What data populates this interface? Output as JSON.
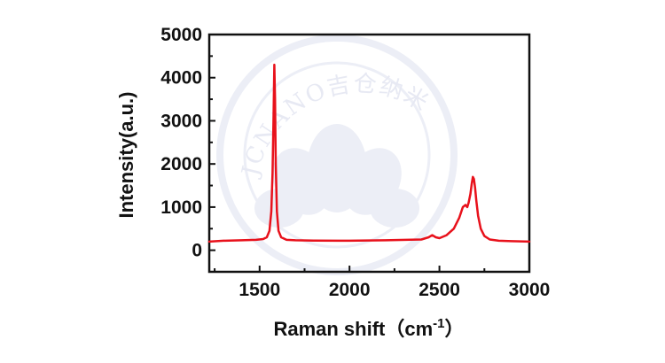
{
  "watermark": {
    "text": "JCNANO吉仓纳米",
    "color": "#e6e8f2"
  },
  "chart_data": {
    "type": "line",
    "title": "",
    "xlabel": "Raman shift（cm",
    "xlabel_sup": "-1",
    "xlabel_close": "）",
    "ylabel": "Intensity(a.u.)",
    "xlim": [
      1220,
      3000
    ],
    "ylim": [
      -500,
      5000
    ],
    "xticks": [
      1500,
      2000,
      2500,
      3000
    ],
    "xtick_labels": [
      "1500",
      "2000",
      "2500",
      "3000"
    ],
    "yticks": [
      0,
      1000,
      2000,
      3000,
      4000,
      5000
    ],
    "ytick_labels": [
      "0",
      "1000",
      "2000",
      "3000",
      "4000",
      "5000"
    ],
    "grid": false,
    "series": [
      {
        "color": "#e8111b",
        "x": [
          1220,
          1300,
          1400,
          1480,
          1520,
          1540,
          1555,
          1565,
          1572,
          1578,
          1582,
          1586,
          1590,
          1596,
          1605,
          1620,
          1650,
          1700,
          1800,
          2000,
          2200,
          2400,
          2440,
          2460,
          2480,
          2500,
          2540,
          2580,
          2610,
          2630,
          2645,
          2655,
          2662,
          2672,
          2680,
          2686,
          2692,
          2698,
          2705,
          2715,
          2730,
          2750,
          2780,
          2830,
          2900,
          3000
        ],
        "y": [
          200,
          220,
          230,
          240,
          260,
          300,
          450,
          900,
          1800,
          3200,
          4300,
          3500,
          2000,
          900,
          450,
          300,
          240,
          230,
          225,
          220,
          230,
          250,
          300,
          350,
          300,
          280,
          350,
          500,
          750,
          1000,
          1050,
          1000,
          1100,
          1300,
          1550,
          1700,
          1650,
          1450,
          1150,
          800,
          500,
          330,
          250,
          220,
          210,
          200
        ]
      }
    ]
  }
}
